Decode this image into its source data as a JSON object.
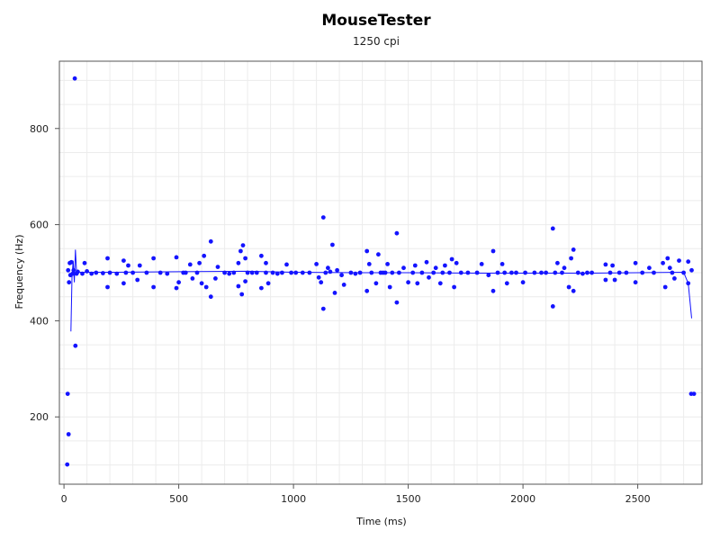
{
  "chart_data": {
    "type": "scatter",
    "title": "MouseTester",
    "subtitle": "1250 cpi",
    "xlabel": "Time (ms)",
    "ylabel": "Frequency (Hz)",
    "xlim": [
      -20,
      2780
    ],
    "ylim": [
      60,
      940
    ],
    "xticks": [
      0,
      500,
      1000,
      1500,
      2000,
      2500
    ],
    "yticks": [
      200,
      400,
      600,
      800
    ],
    "grid": true,
    "colors": {
      "points": "#1414ff",
      "line": "#1414ff",
      "grid": "#ececec",
      "frame": "#555555"
    },
    "series": [
      {
        "marker": "dot",
        "points": [
          [
            14,
            101
          ],
          [
            16,
            248
          ],
          [
            20,
            164
          ],
          [
            18,
            505
          ],
          [
            22,
            480
          ],
          [
            25,
            520
          ],
          [
            28,
            495
          ],
          [
            32,
            522
          ],
          [
            38,
            498
          ],
          [
            42,
            505
          ],
          [
            47,
            904
          ],
          [
            50,
            348
          ],
          [
            55,
            498
          ],
          [
            60,
            502
          ],
          [
            80,
            498
          ],
          [
            90,
            520
          ],
          [
            100,
            503
          ],
          [
            120,
            498
          ],
          [
            140,
            500
          ],
          [
            170,
            499
          ],
          [
            190,
            530
          ],
          [
            190,
            470
          ],
          [
            200,
            500
          ],
          [
            230,
            498
          ],
          [
            260,
            525
          ],
          [
            260,
            478
          ],
          [
            270,
            500
          ],
          [
            280,
            515
          ],
          [
            300,
            500
          ],
          [
            320,
            485
          ],
          [
            330,
            515
          ],
          [
            360,
            500
          ],
          [
            390,
            530
          ],
          [
            390,
            470
          ],
          [
            420,
            500
          ],
          [
            450,
            498
          ],
          [
            490,
            532
          ],
          [
            490,
            468
          ],
          [
            500,
            480
          ],
          [
            520,
            500
          ],
          [
            530,
            500
          ],
          [
            550,
            517
          ],
          [
            560,
            488
          ],
          [
            580,
            500
          ],
          [
            590,
            520
          ],
          [
            600,
            478
          ],
          [
            610,
            535
          ],
          [
            620,
            470
          ],
          [
            640,
            565
          ],
          [
            640,
            450
          ],
          [
            660,
            488
          ],
          [
            670,
            512
          ],
          [
            700,
            500
          ],
          [
            720,
            498
          ],
          [
            740,
            500
          ],
          [
            760,
            520
          ],
          [
            760,
            472
          ],
          [
            770,
            545
          ],
          [
            775,
            455
          ],
          [
            780,
            557
          ],
          [
            790,
            530
          ],
          [
            790,
            482
          ],
          [
            800,
            500
          ],
          [
            820,
            500
          ],
          [
            840,
            500
          ],
          [
            860,
            535
          ],
          [
            860,
            468
          ],
          [
            880,
            500
          ],
          [
            880,
            520
          ],
          [
            890,
            478
          ],
          [
            910,
            500
          ],
          [
            930,
            498
          ],
          [
            950,
            500
          ],
          [
            970,
            517
          ],
          [
            990,
            500
          ],
          [
            1010,
            500
          ],
          [
            1040,
            500
          ],
          [
            1070,
            500
          ],
          [
            1100,
            518
          ],
          [
            1110,
            490
          ],
          [
            1120,
            480
          ],
          [
            1130,
            615
          ],
          [
            1130,
            425
          ],
          [
            1140,
            500
          ],
          [
            1150,
            510
          ],
          [
            1160,
            502
          ],
          [
            1170,
            558
          ],
          [
            1180,
            458
          ],
          [
            1190,
            505
          ],
          [
            1210,
            495
          ],
          [
            1220,
            475
          ],
          [
            1250,
            500
          ],
          [
            1270,
            498
          ],
          [
            1290,
            500
          ],
          [
            1320,
            545
          ],
          [
            1320,
            462
          ],
          [
            1330,
            518
          ],
          [
            1340,
            500
          ],
          [
            1360,
            478
          ],
          [
            1370,
            538
          ],
          [
            1380,
            500
          ],
          [
            1390,
            500
          ],
          [
            1400,
            500
          ],
          [
            1410,
            518
          ],
          [
            1420,
            470
          ],
          [
            1430,
            500
          ],
          [
            1450,
            582
          ],
          [
            1450,
            438
          ],
          [
            1460,
            500
          ],
          [
            1480,
            510
          ],
          [
            1500,
            480
          ],
          [
            1520,
            500
          ],
          [
            1530,
            515
          ],
          [
            1540,
            478
          ],
          [
            1560,
            500
          ],
          [
            1580,
            522
          ],
          [
            1590,
            490
          ],
          [
            1610,
            500
          ],
          [
            1620,
            510
          ],
          [
            1640,
            478
          ],
          [
            1650,
            500
          ],
          [
            1660,
            515
          ],
          [
            1680,
            500
          ],
          [
            1690,
            528
          ],
          [
            1700,
            470
          ],
          [
            1710,
            520
          ],
          [
            1730,
            500
          ],
          [
            1760,
            500
          ],
          [
            1800,
            500
          ],
          [
            1820,
            518
          ],
          [
            1850,
            495
          ],
          [
            1870,
            545
          ],
          [
            1870,
            462
          ],
          [
            1890,
            500
          ],
          [
            1910,
            518
          ],
          [
            1920,
            500
          ],
          [
            1930,
            478
          ],
          [
            1950,
            500
          ],
          [
            1970,
            500
          ],
          [
            2000,
            480
          ],
          [
            2010,
            500
          ],
          [
            2050,
            500
          ],
          [
            2080,
            500
          ],
          [
            2100,
            500
          ],
          [
            2130,
            592
          ],
          [
            2130,
            430
          ],
          [
            2140,
            500
          ],
          [
            2150,
            520
          ],
          [
            2170,
            500
          ],
          [
            2180,
            510
          ],
          [
            2200,
            470
          ],
          [
            2210,
            530
          ],
          [
            2220,
            548
          ],
          [
            2220,
            462
          ],
          [
            2240,
            500
          ],
          [
            2260,
            498
          ],
          [
            2280,
            500
          ],
          [
            2300,
            500
          ],
          [
            2360,
            517
          ],
          [
            2360,
            485
          ],
          [
            2380,
            500
          ],
          [
            2390,
            515
          ],
          [
            2400,
            485
          ],
          [
            2420,
            500
          ],
          [
            2450,
            500
          ],
          [
            2490,
            520
          ],
          [
            2490,
            480
          ],
          [
            2520,
            500
          ],
          [
            2550,
            510
          ],
          [
            2570,
            500
          ],
          [
            2610,
            520
          ],
          [
            2620,
            470
          ],
          [
            2630,
            530
          ],
          [
            2640,
            510
          ],
          [
            2650,
            500
          ],
          [
            2660,
            488
          ],
          [
            2680,
            525
          ],
          [
            2700,
            500
          ],
          [
            2720,
            523
          ],
          [
            2720,
            478
          ],
          [
            2735,
            505
          ],
          [
            2733,
            248
          ],
          [
            2745,
            248
          ]
        ]
      },
      {
        "marker": "line",
        "points": [
          [
            30,
            378
          ],
          [
            35,
            490
          ],
          [
            40,
            525
          ],
          [
            45,
            480
          ],
          [
            50,
            548
          ],
          [
            55,
            500
          ],
          [
            60,
            501
          ],
          [
            200,
            501
          ],
          [
            500,
            502
          ],
          [
            800,
            503
          ],
          [
            1000,
            501
          ],
          [
            1300,
            500
          ],
          [
            1500,
            500
          ],
          [
            1800,
            499
          ],
          [
            2000,
            499
          ],
          [
            2300,
            499
          ],
          [
            2500,
            500
          ],
          [
            2700,
            501
          ],
          [
            2720,
            478
          ],
          [
            2735,
            405
          ]
        ]
      }
    ]
  }
}
